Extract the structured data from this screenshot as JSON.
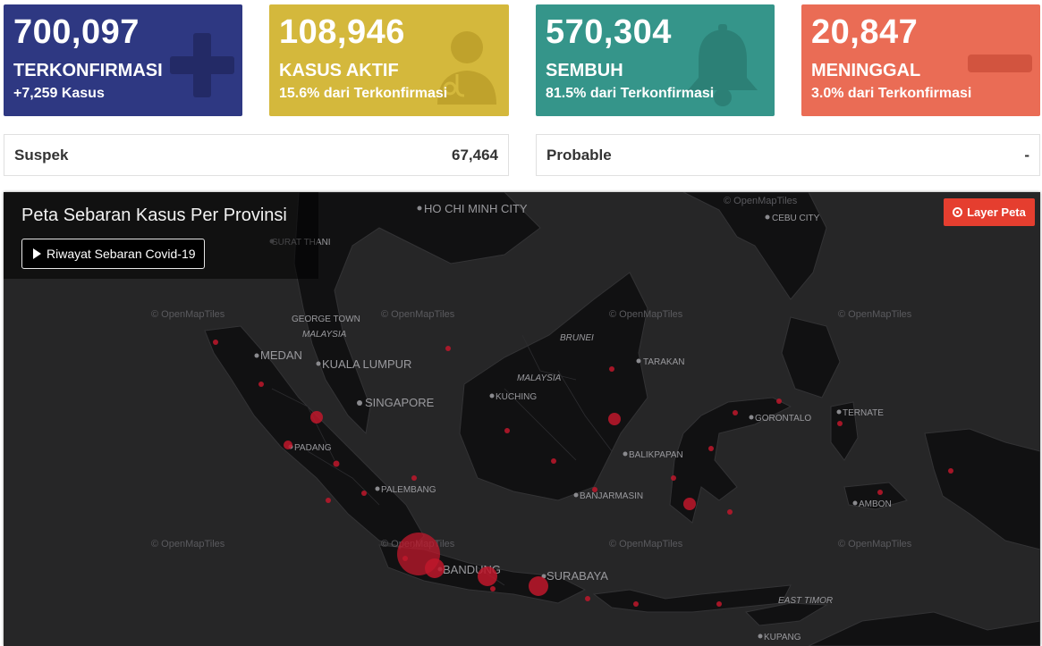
{
  "cards": {
    "confirmed": {
      "value": "700,097",
      "label": "TERKONFIRMASI",
      "sub": "+7,259 Kasus",
      "color": "#2e3882",
      "icon": "plus-icon"
    },
    "active": {
      "value": "108,946",
      "label": "KASUS AKTIF",
      "sub": "15.6% dari Terkonfirmasi",
      "color": "#d4b83c",
      "icon": "doctor-icon"
    },
    "recovered": {
      "value": "570,304",
      "label": "SEMBUH",
      "sub": "81.5% dari Terkonfirmasi",
      "color": "#35958a",
      "icon": "bell-icon"
    },
    "deaths": {
      "value": "20,847",
      "label": "MENINGGAL",
      "sub": "3.0% dari Terkonfirmasi",
      "color": "#ea6c55",
      "icon": "minus-icon"
    }
  },
  "stats": {
    "suspect": {
      "label": "Suspek",
      "value": "67,464"
    },
    "probable": {
      "label": "Probable",
      "value": "-"
    }
  },
  "map": {
    "title": "Peta Sebaran Kasus Per Provinsi",
    "history_button": "Riwayat Sebaran Covid-19",
    "layer_button": "Layer Peta",
    "attribution": "© OpenMapTiles",
    "cities": [
      "HO CHI MINH CITY",
      "CEBU CITY",
      "SURAT THANI",
      "GEORGE TOWN",
      "MEDAN",
      "KUALA LUMPUR",
      "SINGAPORE",
      "BRUNEI",
      "TARAKAN",
      "KUCHING",
      "GORONTALO",
      "TERNATE",
      "PADANG",
      "BALIKPAPAN",
      "PALEMBANG",
      "BANJARMASIN",
      "AMBON",
      "BANDUNG",
      "SURABAYA",
      "KUPANG"
    ],
    "regions": [
      "MALAYSIA",
      "MALAYSIA",
      "EAST TIMOR"
    ]
  }
}
